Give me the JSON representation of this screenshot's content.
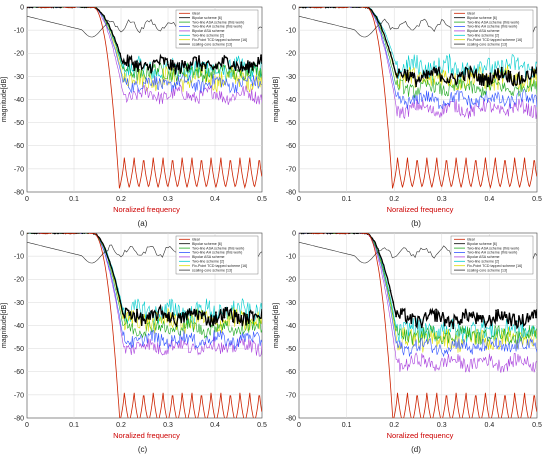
{
  "chart_data": [
    {
      "type": "line",
      "caption": "(a)",
      "xlabel": "Noralized frequency",
      "ylabel": "magnitude[dB]",
      "xlim": [
        0,
        0.5
      ],
      "ylim": [
        -80,
        0
      ],
      "xticks": [
        "0",
        "0.1",
        "0.2",
        "0.3",
        "0.4",
        "0.5"
      ],
      "yticks": [
        "0",
        "-10",
        "-20",
        "-30",
        "-40",
        "-50",
        "-60",
        "-70",
        "-80"
      ],
      "grid": true,
      "legend_position": "top-right",
      "stopband_levels": [
        -66,
        -25,
        -28,
        -33,
        -38,
        -27,
        -31,
        -8
      ]
    },
    {
      "type": "line",
      "caption": "(b)",
      "xlabel": "Noralized frequency",
      "ylabel": "magnitude[dB]",
      "xlim": [
        0,
        0.5
      ],
      "ylim": [
        -80,
        0
      ],
      "xticks": [
        "0",
        "0.1",
        "0.2",
        "0.3",
        "0.4",
        "0.5"
      ],
      "yticks": [
        "0",
        "-10",
        "-20",
        "-30",
        "-40",
        "-50",
        "-60",
        "-70",
        "-80"
      ],
      "grid": true,
      "legend_position": "top-right",
      "stopband_levels": [
        -66,
        -30,
        -35,
        -40,
        -44,
        -26,
        -31,
        -8
      ]
    },
    {
      "type": "line",
      "caption": "(c)",
      "xlabel": "Noralized frequency",
      "ylabel": "magnitude[dB]",
      "xlim": [
        0,
        0.5
      ],
      "ylim": [
        -80,
        0
      ],
      "xticks": [
        "0",
        "0.1",
        "0.2",
        "0.3",
        "0.4",
        "0.5"
      ],
      "yticks": [
        "0",
        "-10",
        "-20",
        "-30",
        "-40",
        "-50",
        "-60",
        "-70",
        "-80"
      ],
      "grid": true,
      "legend_position": "top-right",
      "stopband_levels": [
        -70,
        -36,
        -41,
        -46,
        -49,
        -34,
        -38,
        -8
      ]
    },
    {
      "type": "line",
      "caption": "(d)",
      "xlabel": "Noralized frequency",
      "ylabel": "magnitude[dB]",
      "xlim": [
        0,
        0.5
      ],
      "ylim": [
        -80,
        0
      ],
      "xticks": [
        "0",
        "0.1",
        "0.2",
        "0.3",
        "0.4",
        "0.5"
      ],
      "yticks": [
        "0",
        "-10",
        "-20",
        "-30",
        "-40",
        "-50",
        "-60",
        "-70",
        "-80"
      ],
      "grid": true,
      "legend_position": "top-right",
      "stopband_levels": [
        -70,
        -37,
        -44,
        -49,
        -56,
        -42,
        -46,
        -8
      ]
    }
  ],
  "legend": [
    {
      "label": "ideal",
      "color": "#cc2200"
    },
    {
      "label": "Bipolar scheme [6]",
      "color": "#000000"
    },
    {
      "label": "Two-line ASA scheme (this work)",
      "color": "#22aa22"
    },
    {
      "label": "Two-line AH scheme (this work)",
      "color": "#3355ff"
    },
    {
      "label": "Bipolar ASA scheme",
      "color": "#aa44dd"
    },
    {
      "label": "Two-line scheme [2]",
      "color": "#00cccc"
    },
    {
      "label": "Fix-Point TCD tapped scheme [16]",
      "color": "#dddd00"
    },
    {
      "label": "scaling-core scheme [13]",
      "color": "#333333"
    }
  ]
}
